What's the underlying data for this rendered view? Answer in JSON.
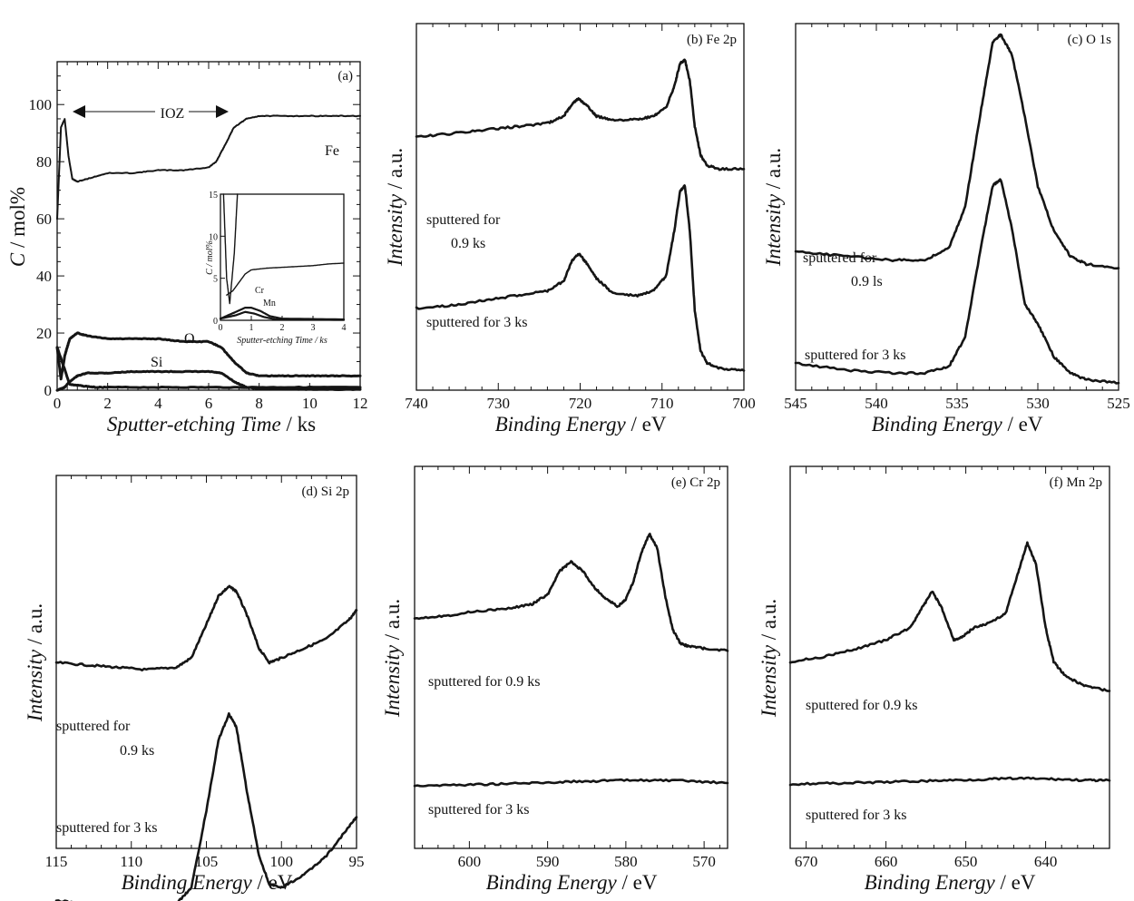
{
  "chart_data": [
    {
      "panel": "a",
      "type": "line",
      "label": "(a)",
      "xlabel": "Sputter-etching Time / ks",
      "ylabel": "C / mol%",
      "xlim": [
        0,
        12
      ],
      "ylim": [
        0,
        115
      ],
      "xticks": [
        0,
        2,
        4,
        6,
        8,
        10,
        12
      ],
      "yticks": [
        0,
        20,
        40,
        60,
        80,
        100
      ],
      "annotation": "IOZ",
      "annotation_range": [
        0.5,
        5.7
      ],
      "series": [
        {
          "name": "Fe",
          "x": [
            0,
            0.15,
            0.3,
            0.45,
            0.6,
            0.8,
            1.2,
            2,
            3,
            4,
            5,
            6,
            6.3,
            6.6,
            7,
            7.5,
            8,
            9,
            10,
            11,
            12
          ],
          "y": [
            60,
            92,
            95,
            82,
            74,
            73,
            74,
            76,
            76,
            77,
            77,
            78,
            80,
            85,
            92,
            95,
            96,
            96,
            96,
            96,
            96
          ]
        },
        {
          "name": "O",
          "x": [
            0,
            0.15,
            0.3,
            0.5,
            0.8,
            1.2,
            2,
            3,
            4,
            5,
            6,
            6.5,
            7,
            7.5,
            8,
            9,
            10,
            11,
            12
          ],
          "y": [
            15,
            4,
            12,
            18,
            20,
            19,
            18,
            18,
            18,
            17,
            17,
            15,
            10,
            6,
            5,
            5,
            5,
            5,
            5
          ]
        },
        {
          "name": "Si",
          "x": [
            0,
            0.3,
            0.5,
            0.8,
            1.2,
            2,
            3,
            4,
            5,
            6,
            6.5,
            7,
            7.5,
            8,
            10,
            12
          ],
          "y": [
            0,
            1,
            3,
            5,
            6,
            6,
            6.5,
            6.5,
            6.5,
            6.5,
            6,
            3,
            1,
            0.5,
            0.3,
            0.3
          ]
        },
        {
          "name": "",
          "x": [
            0,
            0.5,
            1,
            1.5,
            2,
            4,
            6,
            8,
            10,
            12
          ],
          "y": [
            15,
            2,
            1.5,
            1,
            1,
            1,
            1,
            1,
            1,
            1
          ]
        }
      ],
      "inset": {
        "xlabel": "Sputter-etching Time / ks",
        "ylabel": "C / mol%",
        "xlim": [
          0,
          4
        ],
        "ylim": [
          0,
          15
        ],
        "xticks": [
          0,
          1,
          2,
          3,
          4
        ],
        "yticks": [
          0,
          5,
          10,
          15
        ],
        "series": [
          {
            "name": "",
            "x": [
              0.1,
              0.15,
              0.2,
              0.3,
              0.45,
              0.55
            ],
            "y": [
              15,
              10,
              5,
              2,
              8,
              15
            ]
          },
          {
            "name": "",
            "x": [
              0.2,
              0.4,
              0.6,
              0.8,
              1,
              1.5,
              2,
              2.5,
              3,
              3.5,
              4
            ],
            "y": [
              3,
              3.5,
              4.5,
              5.5,
              6,
              6.2,
              6.3,
              6.4,
              6.5,
              6.7,
              6.8
            ]
          },
          {
            "name": "Cr",
            "x": [
              0,
              0.5,
              0.8,
              1.1,
              1.4,
              1.8,
              4
            ],
            "y": [
              0.2,
              0.6,
              1,
              0.8,
              0.4,
              0.1,
              0.05
            ]
          },
          {
            "name": "Mn",
            "x": [
              0,
              0.5,
              0.8,
              1,
              1.3,
              1.6,
              2,
              4
            ],
            "y": [
              0.2,
              1,
              1.5,
              1.5,
              1.1,
              0.5,
              0.2,
              0.1
            ]
          }
        ]
      }
    },
    {
      "panel": "b",
      "type": "line",
      "label": "(b) Fe 2p",
      "xlabel": "Binding Energy / eV",
      "ylabel": "Intensity / a.u.",
      "xlim": [
        740,
        700
      ],
      "ylim": [
        0,
        100
      ],
      "xticks": [
        740,
        730,
        720,
        710,
        700
      ],
      "annotations": [
        "sputtered for",
        "0.9 ks",
        "sputtered for 3 ks"
      ],
      "series": [
        {
          "name": "sputtered for 0.9 ks",
          "x": [
            740,
            736,
            732,
            728,
            724,
            722,
            721,
            720.2,
            719.2,
            718,
            716,
            713,
            711,
            709.5,
            708.5,
            707.8,
            707.2,
            706.6,
            706,
            705.3,
            704.5,
            703,
            700
          ],
          "y": [
            56,
            58,
            60,
            62,
            64,
            68,
            75,
            78,
            74,
            68,
            66,
            66,
            68,
            73,
            85,
            98,
            100,
            88,
            62,
            46,
            40,
            38,
            38
          ]
        },
        {
          "name": "sputtered for 3 ks",
          "x": [
            740,
            736,
            732,
            728,
            724,
            722,
            721,
            720.2,
            719.2,
            718,
            716,
            713,
            711,
            709.5,
            708.5,
            707.8,
            707.2,
            706.6,
            706,
            705.3,
            704.5,
            703,
            700
          ],
          "y": [
            31,
            32,
            34,
            36,
            38,
            42,
            50,
            53,
            49,
            43,
            37,
            36,
            38,
            44,
            62,
            78,
            80,
            62,
            30,
            14,
            9,
            7,
            6
          ]
        }
      ]
    },
    {
      "panel": "c",
      "type": "line",
      "label": "(c) O 1s",
      "xlabel": "Binding Energy / eV",
      "ylabel": "Intensity / a.u.",
      "xlim": [
        545,
        525
      ],
      "ylim": [
        0,
        100
      ],
      "xticks": [
        545,
        540,
        535,
        530,
        525
      ],
      "annotations": [
        "sputtered for",
        "0.9 ls",
        "sputtered for 3 ks"
      ],
      "series": [
        {
          "name": "sputtered for 0.9 ks",
          "x": [
            545,
            542,
            539,
            537,
            535.5,
            534.5,
            533.5,
            532.8,
            532.3,
            531.6,
            530.8,
            530,
            529,
            528,
            527,
            525
          ],
          "y": [
            47,
            46,
            45,
            45,
            48,
            58,
            82,
            98,
            100,
            95,
            80,
            63,
            52,
            46,
            44,
            43
          ]
        },
        {
          "name": "sputtered for 3 ks",
          "x": [
            545,
            542,
            539,
            537,
            535.5,
            534.5,
            533.5,
            532.8,
            532.3,
            531.6,
            530.8,
            530,
            529,
            528,
            527,
            525
          ],
          "y": [
            22,
            20,
            19,
            19,
            21,
            30,
            58,
            76,
            78,
            63,
            40,
            34,
            24,
            19,
            17,
            16
          ]
        }
      ]
    },
    {
      "panel": "d",
      "type": "line",
      "label": "(d) Si 2p",
      "xlabel": "Binding Energy / eV",
      "ylabel": "Intensity / a.u.",
      "xlim": [
        115,
        95
      ],
      "ylim": [
        0,
        100
      ],
      "xticks": [
        115,
        110,
        105,
        100,
        95
      ],
      "annotations": [
        "sputtered for",
        "0.9 ks",
        "sputtered for 3 ks"
      ],
      "series": [
        {
          "name": "sputtered for 0.9 ks",
          "x": [
            115,
            113,
            111,
            109,
            107,
            106,
            105,
            104.2,
            103.5,
            103,
            102.3,
            101.5,
            100.8,
            100,
            98.5,
            97,
            95.5,
            95
          ],
          "y": [
            48,
            47,
            46,
            45,
            46,
            50,
            64,
            76,
            80,
            78,
            68,
            54,
            48,
            50,
            54,
            58,
            66,
            70
          ]
        },
        {
          "name": "sputtered for 3 ks",
          "x": [
            115,
            113,
            111,
            109,
            107,
            106,
            105,
            104.2,
            103.5,
            103,
            102.3,
            101.5,
            100.8,
            100,
            98.5,
            97,
            95.5,
            95
          ],
          "y": [
            10,
            9,
            8,
            7,
            9,
            14,
            38,
            60,
            68,
            64,
            44,
            24,
            15,
            14,
            18,
            24,
            33,
            36
          ]
        }
      ]
    },
    {
      "panel": "e",
      "type": "line",
      "label": "(e) Cr 2p",
      "xlabel": "Binding Energy / eV",
      "ylabel": "Intensity / a.u.",
      "xlim": [
        607,
        567
      ],
      "ylim": [
        0,
        100
      ],
      "xticks": [
        600,
        590,
        580,
        570
      ],
      "annotations": [
        "sputtered for 0.9 ks",
        "sputtered for 3 ks"
      ],
      "series": [
        {
          "name": "sputtered for 0.9 ks",
          "x": [
            607,
            603,
            599,
            595,
            592,
            590,
            588.5,
            587,
            585.5,
            584,
            582.5,
            581,
            580,
            579,
            578,
            577,
            576,
            575,
            574,
            573,
            572,
            570,
            567
          ],
          "y": [
            60,
            61,
            63,
            64,
            66,
            70,
            80,
            84,
            80,
            73,
            68,
            65,
            68,
            76,
            88,
            96,
            90,
            70,
            55,
            49,
            48,
            47,
            46
          ]
        },
        {
          "name": "sputtered for 3 ks",
          "x": [
            607,
            602,
            597,
            592,
            587,
            582,
            577,
            572,
            567
          ],
          "y": [
            19,
            20,
            22,
            24,
            27,
            29,
            30,
            28,
            24
          ]
        }
      ]
    },
    {
      "panel": "f",
      "type": "line",
      "label": "(f) Mn 2p",
      "xlabel": "Binding Energy / eV",
      "ylabel": "Intensity / a.u.",
      "xlim": [
        672,
        632
      ],
      "ylim": [
        0,
        100
      ],
      "xticks": [
        670,
        660,
        650,
        640
      ],
      "annotations": [
        "sputtered for 0.9 ks",
        "sputtered for 3 ks"
      ],
      "series": [
        {
          "name": "sputtered for 0.9 ks",
          "x": [
            672,
            668,
            664,
            660,
            657,
            655.5,
            654.2,
            653,
            651.5,
            650.5,
            649,
            647,
            645,
            643.5,
            642.3,
            641.2,
            640,
            639,
            637.5,
            635,
            632
          ],
          "y": [
            48,
            50,
            53,
            57,
            62,
            70,
            77,
            70,
            57,
            58,
            62,
            64,
            68,
            84,
            97,
            88,
            62,
            48,
            42,
            38,
            36
          ]
        },
        {
          "name": "sputtered for 3 ks",
          "x": [
            672,
            667,
            662,
            657,
            652,
            647,
            643,
            639,
            635,
            632
          ],
          "y": [
            14,
            16,
            18,
            21,
            24,
            27,
            29,
            27,
            24,
            23
          ]
        }
      ]
    }
  ]
}
